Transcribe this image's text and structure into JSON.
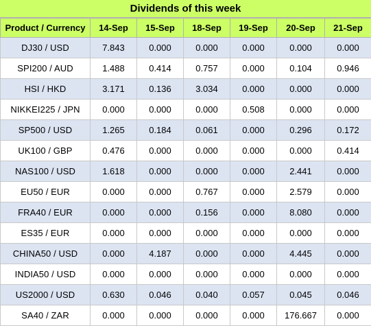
{
  "title": "Dividends of this week",
  "header": {
    "product_label": "Product / Currency",
    "dates": [
      "14-Sep",
      "15-Sep",
      "18-Sep",
      "19-Sep",
      "20-Sep",
      "21-Sep"
    ]
  },
  "rows": [
    {
      "product": "DJ30 / USD",
      "values": [
        "7.843",
        "0.000",
        "0.000",
        "0.000",
        "0.000",
        "0.000"
      ]
    },
    {
      "product": "SPI200 / AUD",
      "values": [
        "1.488",
        "0.414",
        "0.757",
        "0.000",
        "0.104",
        "0.946"
      ]
    },
    {
      "product": "HSI / HKD",
      "values": [
        "3.171",
        "0.136",
        "3.034",
        "0.000",
        "0.000",
        "0.000"
      ]
    },
    {
      "product": "NIKKEI225 / JPN",
      "values": [
        "0.000",
        "0.000",
        "0.000",
        "0.508",
        "0.000",
        "0.000"
      ]
    },
    {
      "product": "SP500 / USD",
      "values": [
        "1.265",
        "0.184",
        "0.061",
        "0.000",
        "0.296",
        "0.172"
      ]
    },
    {
      "product": "UK100 / GBP",
      "values": [
        "0.476",
        "0.000",
        "0.000",
        "0.000",
        "0.000",
        "0.414"
      ]
    },
    {
      "product": "NAS100 / USD",
      "values": [
        "1.618",
        "0.000",
        "0.000",
        "0.000",
        "2.441",
        "0.000"
      ]
    },
    {
      "product": "EU50 / EUR",
      "values": [
        "0.000",
        "0.000",
        "0.767",
        "0.000",
        "2.579",
        "0.000"
      ]
    },
    {
      "product": "FRA40 / EUR",
      "values": [
        "0.000",
        "0.000",
        "0.156",
        "0.000",
        "8.080",
        "0.000"
      ]
    },
    {
      "product": "ES35 / EUR",
      "values": [
        "0.000",
        "0.000",
        "0.000",
        "0.000",
        "0.000",
        "0.000"
      ]
    },
    {
      "product": "CHINA50 / USD",
      "values": [
        "0.000",
        "4.187",
        "0.000",
        "0.000",
        "4.445",
        "0.000"
      ]
    },
    {
      "product": "INDIA50 / USD",
      "values": [
        "0.000",
        "0.000",
        "0.000",
        "0.000",
        "0.000",
        "0.000"
      ]
    },
    {
      "product": "US2000 / USD",
      "values": [
        "0.630",
        "0.046",
        "0.040",
        "0.057",
        "0.045",
        "0.046"
      ]
    },
    {
      "product": "SA40 / ZAR",
      "values": [
        "0.000",
        "0.000",
        "0.000",
        "0.000",
        "176.667",
        "0.000"
      ]
    }
  ],
  "colors": {
    "header_bg": "#ccff66",
    "stripe_bg": "#dce4f2",
    "plain_bg": "#ffffff"
  }
}
